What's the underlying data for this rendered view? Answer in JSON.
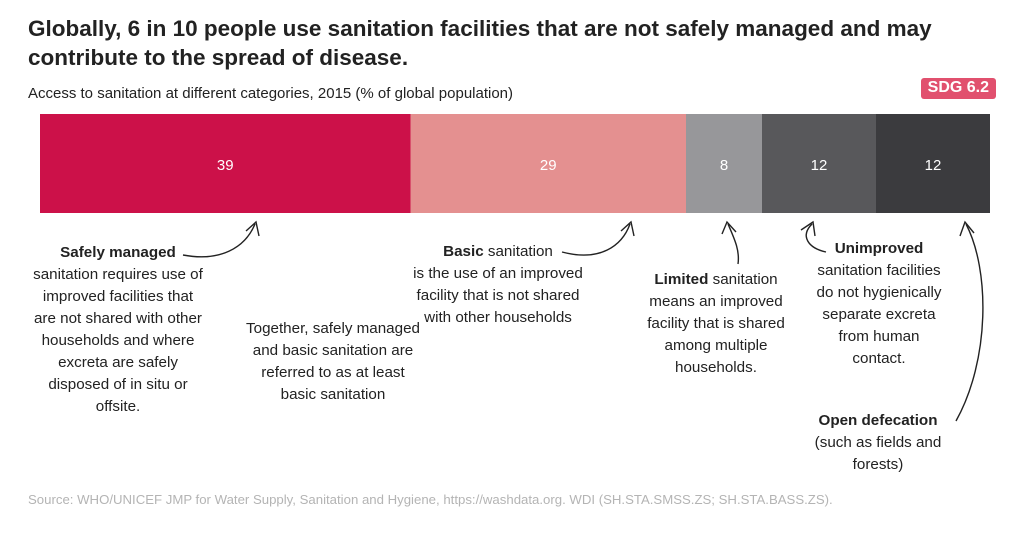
{
  "header": {
    "title": "Globally, 6 in 10 people use sanitation facilities that are not safely managed and may contribute to the spread of disease.",
    "subtitle": "Access to sanitation at different categories, 2015 (% of global population)",
    "badge": "SDG 6.2"
  },
  "chart_data": {
    "type": "bar",
    "orientation": "horizontal-stacked",
    "title": "Globally, 6 in 10 people use sanitation facilities that are not safely managed and may contribute to the spread of disease.",
    "subtitle": "Access to sanitation at different categories, 2015 (% of global population)",
    "categories": [
      "Safely managed",
      "Basic",
      "Limited",
      "Unimproved",
      "Open defecation"
    ],
    "values": [
      39,
      29,
      8,
      12,
      12
    ],
    "colors": [
      "#cc1149",
      "#e49090",
      "#97979a",
      "#58585b",
      "#3b3b3e"
    ]
  },
  "notes": {
    "safely": {
      "bold": "Safely managed",
      "text": "sanitation requires use of improved facilities that are not shared with other households and where excreta are safely disposed of in situ or offsite."
    },
    "together": "Together, safely managed and basic sanitation are referred to as at least basic sanitation",
    "basic": {
      "bold": "Basic",
      "rest": " sanitation",
      "text": "is the use of an improved facility that is not shared with other households"
    },
    "limited": {
      "bold": "Limited",
      "rest": " sanitation",
      "text": "means an improved facility that is shared among multiple households."
    },
    "unimproved": {
      "bold": "Unimproved",
      "text": "sanitation facilities do not hygienically separate excreta from human contact."
    },
    "open": {
      "bold": "Open defecation",
      "text": "(such as fields and forests)"
    }
  },
  "source": "Source: WHO/UNICEF JMP for Water Supply, Sanitation and Hygiene, https://washdata.org. WDI (SH.STA.SMSS.ZS; SH.STA.BASS.ZS)."
}
